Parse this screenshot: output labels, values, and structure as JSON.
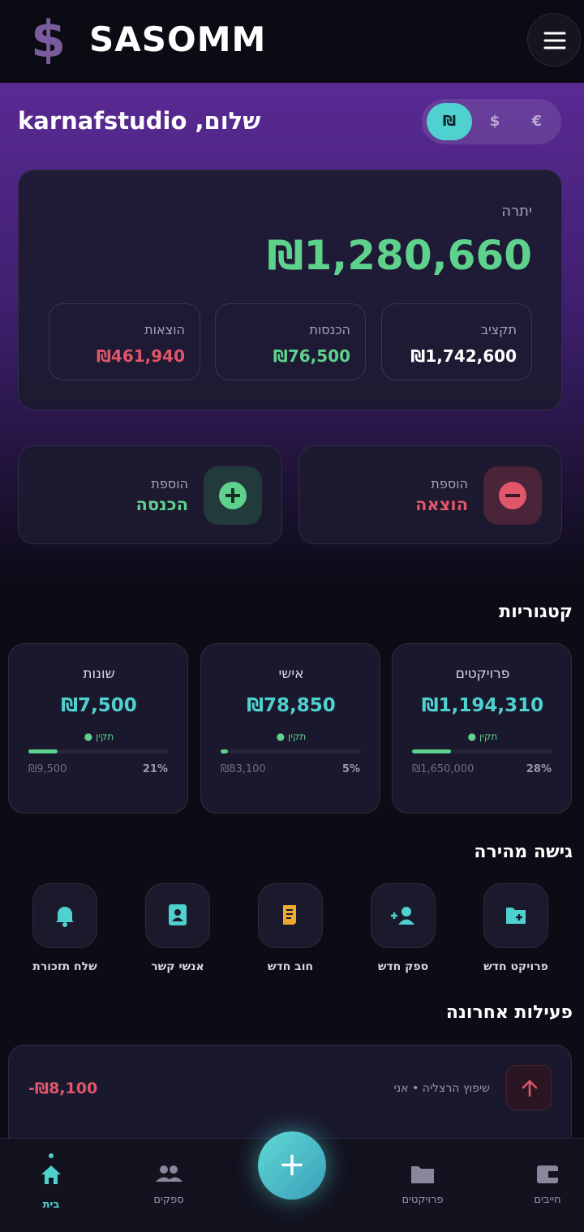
{
  "header": {
    "logo": "$",
    "brand": "SASOMM"
  },
  "greeting": "שלום, karnafstudio",
  "currency_toggle": [
    "₪",
    "$",
    "€"
  ],
  "balance": {
    "label": "יתרה",
    "amount": "₪1,280,660",
    "stats": [
      {
        "label": "תקציב",
        "value": "₪1,742,600"
      },
      {
        "label": "הכנסות",
        "value": "₪76,500"
      },
      {
        "label": "הוצאות",
        "value": "₪461,940"
      }
    ]
  },
  "actions": [
    {
      "label": "הוספת",
      "title": "הוצאה"
    },
    {
      "label": "הוספת",
      "title": "הכנסה"
    }
  ],
  "categories": {
    "title": "קטגוריות",
    "items": [
      {
        "name": "פרויקטים",
        "amount": "₪1,194,310",
        "status": "תקין",
        "percent": "28%",
        "budget": "₪1,650,000"
      },
      {
        "name": "אישי",
        "amount": "₪78,850",
        "status": "תקין",
        "percent": "5%",
        "budget": "₪83,100"
      },
      {
        "name": "שונות",
        "amount": "₪7,500",
        "status": "תקין",
        "percent": "21%",
        "budget": "₪9,500"
      }
    ]
  },
  "quick_access": {
    "title": "גישה מהירה",
    "items": [
      "פרויקט חדש",
      "ספק חדש",
      "חוב חדש",
      "אנשי קשר",
      "שלח תזכורת"
    ]
  },
  "recent": {
    "title": "פעילות אחרונה",
    "items": [
      {
        "description": "שיפוץ הרצליה • אני",
        "amount": "-₪8,100"
      }
    ]
  },
  "nav": {
    "fab": "+",
    "items": [
      "בית",
      "ספקים",
      "פרויקטים",
      "חייבים"
    ]
  }
}
